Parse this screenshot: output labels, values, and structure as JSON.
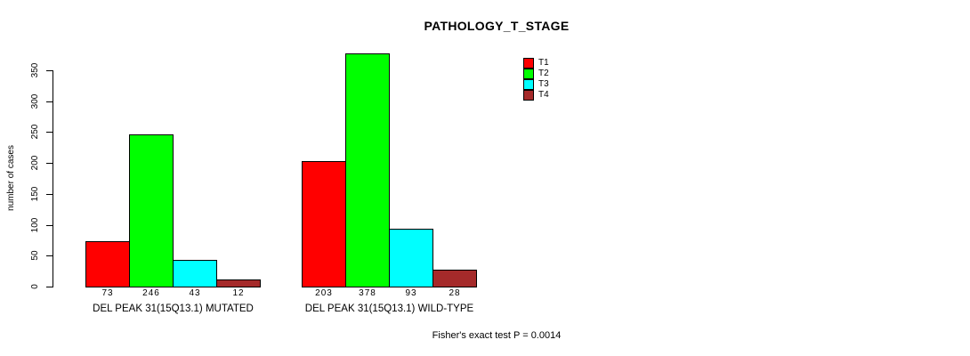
{
  "chart_data": {
    "type": "bar",
    "title": "PATHOLOGY_T_STAGE",
    "ylabel": "number of cases",
    "xlabel": "",
    "ylim": [
      0,
      350
    ],
    "yticks": [
      0,
      50,
      100,
      150,
      200,
      250,
      300,
      350
    ],
    "grid": false,
    "legend_position": "top-right",
    "categories": [
      "DEL PEAK 31(15Q13.1) MUTATED",
      "DEL PEAK 31(15Q13.1) WILD-TYPE"
    ],
    "series": [
      {
        "name": "T1",
        "color": "#ff0000",
        "values": [
          73,
          203
        ]
      },
      {
        "name": "T2",
        "color": "#00ff00",
        "values": [
          246,
          378
        ]
      },
      {
        "name": "T3",
        "color": "#00ffff",
        "values": [
          43,
          93
        ]
      },
      {
        "name": "T4",
        "color": "#a52a2a",
        "values": [
          12,
          28
        ]
      }
    ],
    "bar_value_labels": [
      [
        73,
        246,
        43,
        12
      ],
      [
        203,
        378,
        93,
        28
      ]
    ],
    "annotation": "Fisher's exact test P = 0.0014",
    "colors": {
      "background": "#ffffff",
      "axis": "#000000",
      "text": "#000000"
    }
  }
}
